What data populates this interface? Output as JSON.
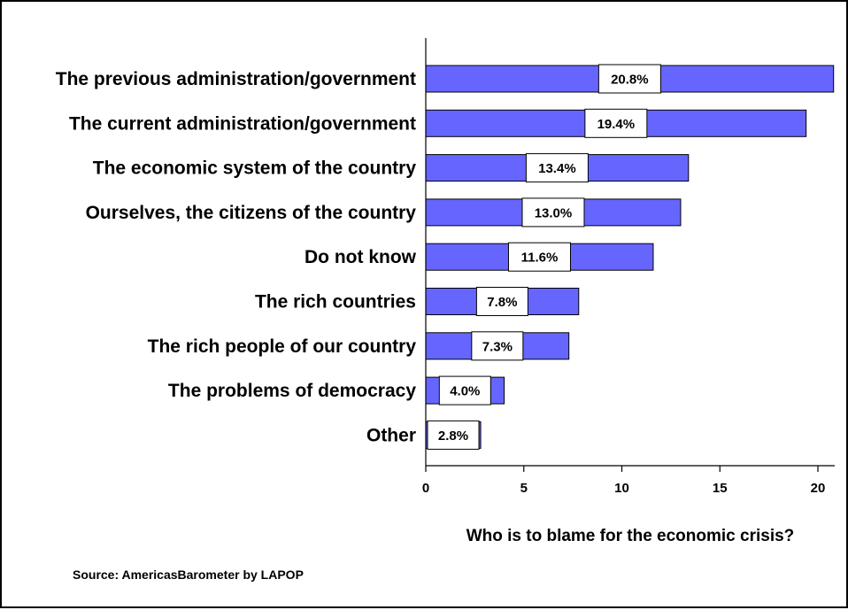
{
  "chart_data": {
    "type": "bar",
    "orientation": "horizontal",
    "categories": [
      "The previous administration/government",
      "The current administration/government",
      "The economic system of the country",
      "Ourselves, the citizens of the country",
      "Do not know",
      "The rich countries",
      "The rich people of our country",
      "The problems of democracy",
      "Other"
    ],
    "values": [
      20.8,
      19.4,
      13.4,
      13.0,
      11.6,
      7.8,
      7.3,
      4.0,
      2.8
    ],
    "value_labels": [
      "20.8%",
      "19.4%",
      "13.4%",
      "13.0%",
      "11.6%",
      "7.8%",
      "7.3%",
      "4.0%",
      "2.8%"
    ],
    "xlabel": "Who is to blame for the economic crisis?",
    "xlim": [
      0,
      22
    ],
    "xticks": [
      0,
      5,
      10,
      15,
      20
    ],
    "xtick_labels": [
      "0",
      "5",
      "10",
      "15",
      "20"
    ],
    "bar_color": "#6666ff",
    "grid": false,
    "legend": "none"
  },
  "source_note": "Source: AmericasBarometer by  LAPOP"
}
